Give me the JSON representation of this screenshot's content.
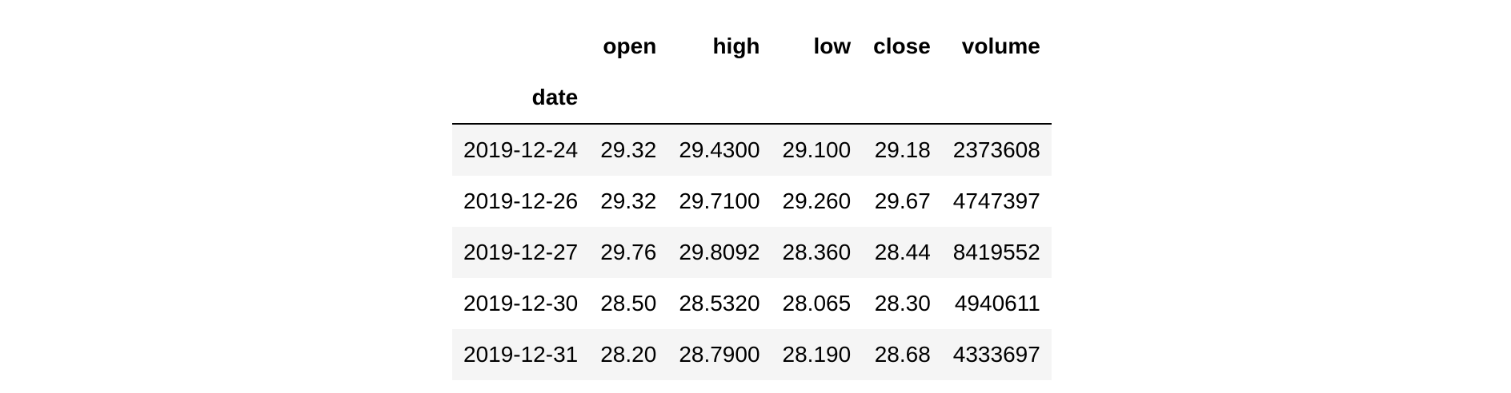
{
  "table": {
    "columns": [
      "open",
      "high",
      "low",
      "close",
      "volume"
    ],
    "index_name": "date",
    "rows": [
      {
        "date": "2019-12-24",
        "values": [
          "29.32",
          "29.4300",
          "29.100",
          "29.18",
          "2373608"
        ]
      },
      {
        "date": "2019-12-26",
        "values": [
          "29.32",
          "29.7100",
          "29.260",
          "29.67",
          "4747397"
        ]
      },
      {
        "date": "2019-12-27",
        "values": [
          "29.76",
          "29.8092",
          "28.360",
          "28.44",
          "8419552"
        ]
      },
      {
        "date": "2019-12-30",
        "values": [
          "28.50",
          "28.5320",
          "28.065",
          "28.30",
          "4940611"
        ]
      },
      {
        "date": "2019-12-31",
        "values": [
          "28.20",
          "28.7900",
          "28.190",
          "28.68",
          "4333697"
        ]
      }
    ]
  },
  "colors": {
    "stripe": "#f5f5f5",
    "header_rule": "#000000"
  }
}
